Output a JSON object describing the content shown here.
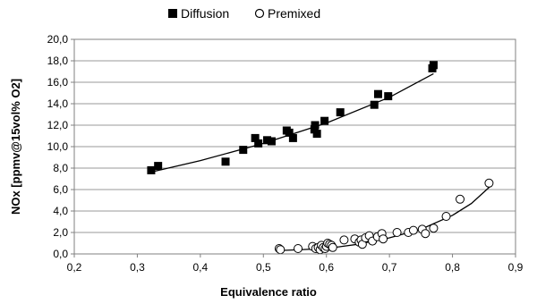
{
  "chart_data": {
    "type": "scatter",
    "xlabel": "Equivalence ratio",
    "ylabel": "NOx [ppmv@15vol% O2]",
    "xlim": [
      0.2,
      0.9
    ],
    "ylim": [
      0,
      20
    ],
    "x_ticks": [
      "0,2",
      "0,3",
      "0,4",
      "0,5",
      "0,6",
      "0,7",
      "0,8",
      "0,9"
    ],
    "y_ticks": [
      "0,0",
      "2,0",
      "4,0",
      "6,0",
      "8,0",
      "10,0",
      "12,0",
      "14,0",
      "16,0",
      "18,0",
      "20,0"
    ],
    "grid": "horizontal",
    "legend_position": "top-center",
    "series": [
      {
        "name": "Diffusion",
        "marker": "filled-square",
        "color": "#000000",
        "points": [
          [
            0.322,
            7.8
          ],
          [
            0.333,
            8.2
          ],
          [
            0.44,
            8.6
          ],
          [
            0.468,
            9.7
          ],
          [
            0.487,
            10.8
          ],
          [
            0.492,
            10.3
          ],
          [
            0.506,
            10.6
          ],
          [
            0.513,
            10.5
          ],
          [
            0.537,
            11.5
          ],
          [
            0.541,
            11.3
          ],
          [
            0.547,
            10.8
          ],
          [
            0.581,
            11.6
          ],
          [
            0.582,
            12.0
          ],
          [
            0.585,
            11.2
          ],
          [
            0.597,
            12.4
          ],
          [
            0.622,
            13.2
          ],
          [
            0.676,
            13.9
          ],
          [
            0.682,
            14.9
          ],
          [
            0.698,
            14.7
          ],
          [
            0.768,
            17.3
          ],
          [
            0.77,
            17.6
          ]
        ],
        "trendline": [
          [
            0.32,
            7.6
          ],
          [
            0.4,
            8.7
          ],
          [
            0.5,
            10.3
          ],
          [
            0.6,
            12.2
          ],
          [
            0.7,
            14.6
          ],
          [
            0.77,
            16.8
          ]
        ]
      },
      {
        "name": "Premixed",
        "marker": "open-circle",
        "color": "#000000",
        "points": [
          [
            0.525,
            0.5
          ],
          [
            0.527,
            0.4
          ],
          [
            0.555,
            0.5
          ],
          [
            0.578,
            0.7
          ],
          [
            0.583,
            0.5
          ],
          [
            0.587,
            0.6
          ],
          [
            0.59,
            0.4
          ],
          [
            0.592,
            0.8
          ],
          [
            0.595,
            0.6
          ],
          [
            0.598,
            0.5
          ],
          [
            0.6,
            0.7
          ],
          [
            0.602,
            1.0
          ],
          [
            0.605,
            0.9
          ],
          [
            0.608,
            0.8
          ],
          [
            0.61,
            0.6
          ],
          [
            0.628,
            1.3
          ],
          [
            0.645,
            1.4
          ],
          [
            0.652,
            1.1
          ],
          [
            0.655,
            1.3
          ],
          [
            0.657,
            0.9
          ],
          [
            0.662,
            1.5
          ],
          [
            0.668,
            1.7
          ],
          [
            0.673,
            1.2
          ],
          [
            0.681,
            1.6
          ],
          [
            0.688,
            1.9
          ],
          [
            0.69,
            1.4
          ],
          [
            0.712,
            2.0
          ],
          [
            0.73,
            2.0
          ],
          [
            0.738,
            2.2
          ],
          [
            0.752,
            2.3
          ],
          [
            0.757,
            1.9
          ],
          [
            0.77,
            2.4
          ],
          [
            0.79,
            3.5
          ],
          [
            0.812,
            5.1
          ],
          [
            0.858,
            6.6
          ]
        ],
        "trendline": [
          [
            0.52,
            0.3
          ],
          [
            0.6,
            0.5
          ],
          [
            0.65,
            0.9
          ],
          [
            0.7,
            1.5
          ],
          [
            0.75,
            2.3
          ],
          [
            0.8,
            3.6
          ],
          [
            0.83,
            4.7
          ],
          [
            0.86,
            6.3
          ]
        ]
      }
    ]
  }
}
